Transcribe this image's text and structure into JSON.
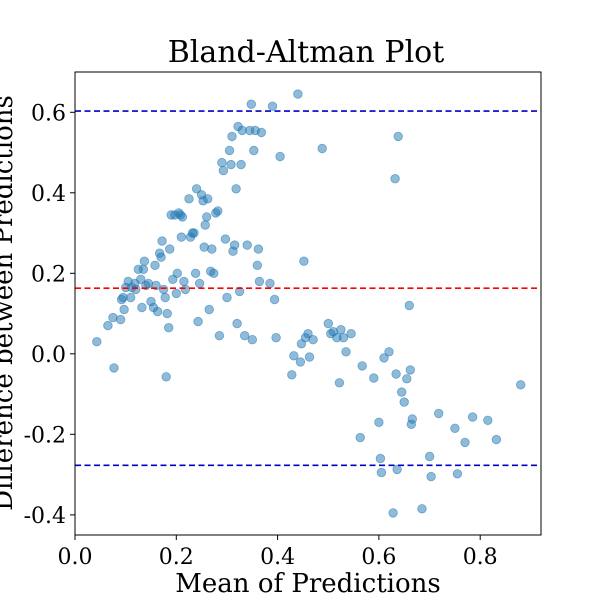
{
  "chart_data": {
    "type": "scatter",
    "title": "Bland-Altman Plot",
    "xlabel": "Mean of Predictions",
    "ylabel": "Difference between Predictions",
    "xlim": [
      0.0,
      0.92
    ],
    "ylim": [
      -0.45,
      0.7
    ],
    "xticks": [
      0.0,
      0.2,
      0.4,
      0.6,
      0.8
    ],
    "xtick_labels": [
      "0.0",
      "0.2",
      "0.4",
      "0.6",
      "0.8"
    ],
    "yticks": [
      -0.4,
      -0.2,
      0.0,
      0.2,
      0.4,
      0.6
    ],
    "ytick_labels": [
      "-0.4",
      "-0.2",
      "0.0",
      "0.2",
      "0.4",
      "0.6"
    ],
    "grid": false,
    "point_color": "#1f77b4",
    "point_alpha": 0.5,
    "mean_line": {
      "value": 0.163,
      "color": "#ff0000",
      "style": "dashed"
    },
    "limits_of_agreement": [
      {
        "value": 0.603,
        "color": "#0000cc",
        "style": "dashed"
      },
      {
        "value": -0.277,
        "color": "#0000cc",
        "style": "dashed"
      }
    ],
    "points": [
      [
        0.043,
        0.03
      ],
      [
        0.065,
        0.07
      ],
      [
        0.075,
        0.09
      ],
      [
        0.077,
        -0.035
      ],
      [
        0.09,
        0.085
      ],
      [
        0.092,
        0.135
      ],
      [
        0.095,
        0.14
      ],
      [
        0.097,
        0.11
      ],
      [
        0.1,
        0.165
      ],
      [
        0.105,
        0.18
      ],
      [
        0.11,
        0.14
      ],
      [
        0.112,
        0.165
      ],
      [
        0.118,
        0.175
      ],
      [
        0.12,
        0.16
      ],
      [
        0.125,
        0.21
      ],
      [
        0.13,
        0.185
      ],
      [
        0.132,
        0.115
      ],
      [
        0.135,
        0.21
      ],
      [
        0.137,
        0.23
      ],
      [
        0.14,
        0.17
      ],
      [
        0.145,
        0.175
      ],
      [
        0.15,
        0.13
      ],
      [
        0.155,
        0.115
      ],
      [
        0.158,
        0.22
      ],
      [
        0.16,
        0.17
      ],
      [
        0.163,
        0.105
      ],
      [
        0.167,
        0.25
      ],
      [
        0.17,
        0.24
      ],
      [
        0.172,
        0.28
      ],
      [
        0.175,
        0.16
      ],
      [
        0.178,
        0.14
      ],
      [
        0.18,
        -0.057
      ],
      [
        0.182,
        0.1
      ],
      [
        0.185,
        0.065
      ],
      [
        0.187,
        0.26
      ],
      [
        0.19,
        0.345
      ],
      [
        0.193,
        0.185
      ],
      [
        0.197,
        0.345
      ],
      [
        0.2,
        0.15
      ],
      [
        0.202,
        0.2
      ],
      [
        0.205,
        0.35
      ],
      [
        0.208,
        0.345
      ],
      [
        0.21,
        0.29
      ],
      [
        0.212,
        0.34
      ],
      [
        0.215,
        0.18
      ],
      [
        0.218,
        0.16
      ],
      [
        0.225,
        0.385
      ],
      [
        0.228,
        0.29
      ],
      [
        0.232,
        0.3
      ],
      [
        0.235,
        0.3
      ],
      [
        0.238,
        0.2
      ],
      [
        0.24,
        0.41
      ],
      [
        0.243,
        0.08
      ],
      [
        0.246,
        0.175
      ],
      [
        0.25,
        0.395
      ],
      [
        0.253,
        0.38
      ],
      [
        0.255,
        0.265
      ],
      [
        0.257,
        0.32
      ],
      [
        0.26,
        0.34
      ],
      [
        0.262,
        0.385
      ],
      [
        0.265,
        0.11
      ],
      [
        0.268,
        0.205
      ],
      [
        0.27,
        0.26
      ],
      [
        0.274,
        0.2
      ],
      [
        0.278,
        0.35
      ],
      [
        0.282,
        0.355
      ],
      [
        0.285,
        0.045
      ],
      [
        0.29,
        0.475
      ],
      [
        0.293,
        0.455
      ],
      [
        0.297,
        0.285
      ],
      [
        0.3,
        0.14
      ],
      [
        0.305,
        0.505
      ],
      [
        0.308,
        0.47
      ],
      [
        0.31,
        0.54
      ],
      [
        0.312,
        0.255
      ],
      [
        0.315,
        0.27
      ],
      [
        0.318,
        0.41
      ],
      [
        0.32,
        0.075
      ],
      [
        0.322,
        0.565
      ],
      [
        0.325,
        0.155
      ],
      [
        0.328,
        0.47
      ],
      [
        0.33,
        0.555
      ],
      [
        0.335,
        0.045
      ],
      [
        0.34,
        0.27
      ],
      [
        0.345,
        0.555
      ],
      [
        0.348,
        0.62
      ],
      [
        0.35,
        0.035
      ],
      [
        0.353,
        0.505
      ],
      [
        0.356,
        0.555
      ],
      [
        0.36,
        0.22
      ],
      [
        0.362,
        0.26
      ],
      [
        0.364,
        0.18
      ],
      [
        0.368,
        0.55
      ],
      [
        0.385,
        0.175
      ],
      [
        0.39,
        0.615
      ],
      [
        0.394,
        0.135
      ],
      [
        0.397,
        0.04
      ],
      [
        0.405,
        0.49
      ],
      [
        0.428,
        -0.052
      ],
      [
        0.432,
        -0.005
      ],
      [
        0.44,
        0.645
      ],
      [
        0.445,
        -0.02
      ],
      [
        0.447,
        0.025
      ],
      [
        0.452,
        0.23
      ],
      [
        0.455,
        0.04
      ],
      [
        0.46,
        0.05
      ],
      [
        0.463,
        -0.008
      ],
      [
        0.47,
        0.035
      ],
      [
        0.488,
        0.51
      ],
      [
        0.5,
        0.075
      ],
      [
        0.505,
        0.05
      ],
      [
        0.51,
        0.055
      ],
      [
        0.517,
        0.04
      ],
      [
        0.522,
        -0.072
      ],
      [
        0.525,
        0.06
      ],
      [
        0.53,
        0.04
      ],
      [
        0.535,
        0.005
      ],
      [
        0.545,
        0.05
      ],
      [
        0.563,
        -0.208
      ],
      [
        0.567,
        -0.03
      ],
      [
        0.59,
        -0.06
      ],
      [
        0.6,
        -0.17
      ],
      [
        0.603,
        -0.26
      ],
      [
        0.605,
        -0.295
      ],
      [
        0.61,
        -0.01
      ],
      [
        0.62,
        0.005
      ],
      [
        0.628,
        -0.395
      ],
      [
        0.632,
        0.435
      ],
      [
        0.634,
        -0.05
      ],
      [
        0.636,
        -0.287
      ],
      [
        0.638,
        0.54
      ],
      [
        0.645,
        -0.095
      ],
      [
        0.65,
        -0.12
      ],
      [
        0.655,
        -0.062
      ],
      [
        0.66,
        0.12
      ],
      [
        0.662,
        -0.04
      ],
      [
        0.664,
        -0.175
      ],
      [
        0.666,
        -0.162
      ],
      [
        0.685,
        -0.385
      ],
      [
        0.7,
        -0.255
      ],
      [
        0.703,
        -0.305
      ],
      [
        0.718,
        -0.148
      ],
      [
        0.75,
        -0.185
      ],
      [
        0.755,
        -0.298
      ],
      [
        0.77,
        -0.22
      ],
      [
        0.785,
        -0.157
      ],
      [
        0.815,
        -0.165
      ],
      [
        0.832,
        -0.213
      ],
      [
        0.88,
        -0.077
      ]
    ]
  }
}
